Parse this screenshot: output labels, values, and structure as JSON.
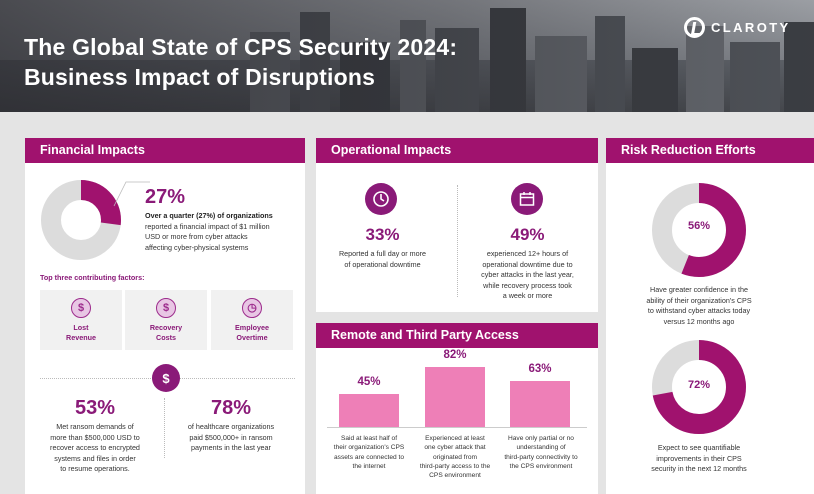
{
  "header": {
    "title_line1": "The Global State of CPS Security 2024:",
    "title_line2": "Business Impact of Disruptions",
    "logo_text": "CLAROTY"
  },
  "colors": {
    "accent": "#a0126e",
    "purple": "#8a1a78",
    "pink": "#ee7fb7",
    "grey": "#e4e4e4"
  },
  "financial": {
    "heading": "Financial Impacts",
    "donut_value": 0.27,
    "stat": "27%",
    "desc_bold": "Over a quarter (27%) of organizations",
    "desc_lines": [
      "reported a financial impact of $1 million",
      "USD or more from cyber attacks",
      "affecting cyber-physical systems"
    ],
    "factors_heading": "Top three contributing factors:",
    "factors": [
      {
        "icon": "dollar-down-icon",
        "line1": "Lost",
        "line2": "Revenue"
      },
      {
        "icon": "dollar-icon",
        "line1": "Recovery",
        "line2": "Costs"
      },
      {
        "icon": "clock-icon",
        "line1": "Employee",
        "line2": "Overtime"
      }
    ],
    "ransom_icon": "dollar-circle-icon",
    "ransom_stat": "53%",
    "ransom_lines": [
      "Met ransom demands of",
      "more than $500,000 USD to",
      "recover access to encrypted",
      "systems and files in order",
      "to resume operations."
    ],
    "health_stat": "78%",
    "health_lines": [
      "of healthcare organizations",
      "paid $500,000+ in ransom",
      "payments in the last year"
    ]
  },
  "operational": {
    "heading": "Operational Impacts",
    "left_icon": "clock-icon",
    "left_stat": "33%",
    "left_lines": [
      "Reported a full day or more",
      "of operational downtime"
    ],
    "right_icon": "calendar-icon",
    "right_stat": "49%",
    "right_lines": [
      "experienced 12+ hours of",
      "operational downtime due to",
      "cyber attacks in the last year,",
      "while recovery process took",
      "a week or more"
    ]
  },
  "remote": {
    "heading": "Remote and Third Party Access"
  },
  "chart_data": {
    "type": "bar",
    "title": "Remote and Third Party Access",
    "categories": [
      "Said at least half of their organization's CPS assets are connected to the internet",
      "Experienced at least one cyber attack that originated from third-party access to the CPS environment",
      "Have only partial or no understanding of third-party connectivity to the CPS environment"
    ],
    "values": [
      45,
      82,
      63
    ],
    "value_labels": [
      "45%",
      "82%",
      "63%"
    ],
    "category_lines": [
      [
        "Said at least half of",
        "their organization's CPS",
        "assets are connected to",
        "the internet"
      ],
      [
        "Experienced at least",
        "one cyber attack that",
        "originated from",
        "third-party access to the",
        "CPS environment"
      ],
      [
        "Have only partial or no",
        "understanding of",
        "third-party connectivity to",
        "the CPS environment"
      ]
    ],
    "ylim": [
      0,
      100
    ]
  },
  "risk": {
    "heading": "Risk Reduction Efforts",
    "donut1_value": 0.56,
    "donut1_label": "56%",
    "donut1_lines": [
      "Have greater confidence in the",
      "ability of their organization's CPS",
      "to withstand cyber attacks today",
      "versus 12 months ago"
    ],
    "donut2_value": 0.72,
    "donut2_label": "72%",
    "donut2_lines": [
      "Expect to see quantifiable",
      "improvements in their CPS",
      "security in the next 12 months"
    ]
  }
}
